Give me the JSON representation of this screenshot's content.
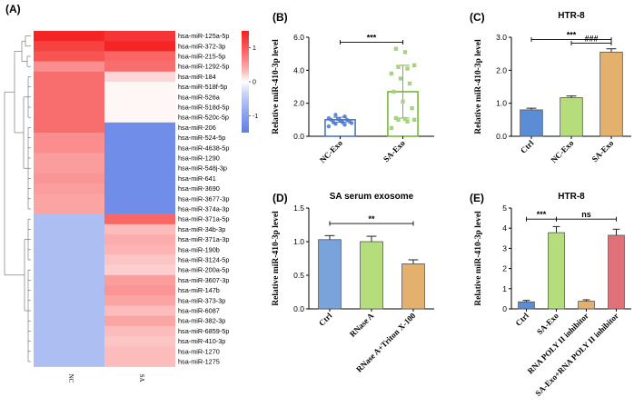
{
  "chart_data": [
    {
      "panel": "(A)",
      "type": "heatmap",
      "columns": [
        "NC",
        "SA"
      ],
      "rows": [
        "hsa-miR-125a-5p",
        "hsa-miR-372-3p",
        "hsa-miR-215-5p",
        "hsa-miR-1292-5p",
        "hsa-miR-184",
        "hsa-miR-518f-5p",
        "hsa-miR-526a",
        "hsa-miR-518d-5p",
        "hsa-miR-520c-5p",
        "hsa-miR-206",
        "hsa-miR-524-5p",
        "hsa-miR-4638-5p",
        "hsa-miR-1290",
        "hsa-miR-548j-3p",
        "hsa-miR-641",
        "hsa-miR-3690",
        "hsa-miR-3677-3p",
        "hsa-miR-374a-3p",
        "hsa-miR-371a-5p",
        "hsa-miR-34b-3p",
        "hsa-miR-371a-3p",
        "hsa-miR-190b",
        "hsa-miR-3124-5p",
        "hsa-miR-200a-5p",
        "hsa-miR-3607-3p",
        "hsa-miR-147b",
        "hsa-miR-373-3p",
        "hsa-miR-6087",
        "hsa-miR-382-3p",
        "hsa-miR-6859-5p",
        "hsa-miR-410-3p",
        "hsa-miR-1270",
        "hsa-miR-1275"
      ],
      "values": [
        [
          1.45,
          1.3
        ],
        [
          1.2,
          1.45
        ],
        [
          1.05,
          0.9
        ],
        [
          0.6,
          0.85
        ],
        [
          0.85,
          0.15
        ],
        [
          0.85,
          0.02
        ],
        [
          0.85,
          0.02
        ],
        [
          0.85,
          0.02
        ],
        [
          0.85,
          0.02
        ],
        [
          0.85,
          -1.25
        ],
        [
          0.6,
          -1.25
        ],
        [
          0.6,
          -1.25
        ],
        [
          0.5,
          -1.25
        ],
        [
          0.5,
          -1.25
        ],
        [
          0.55,
          -1.25
        ],
        [
          0.5,
          -1.25
        ],
        [
          0.45,
          -1.25
        ],
        [
          0.45,
          -1.25
        ],
        [
          -0.6,
          0.9
        ],
        [
          -0.6,
          0.3
        ],
        [
          -0.6,
          0.4
        ],
        [
          -0.6,
          0.35
        ],
        [
          -0.6,
          0.25
        ],
        [
          -0.6,
          0.2
        ],
        [
          -0.6,
          0.5
        ],
        [
          -0.6,
          0.55
        ],
        [
          -0.6,
          0.45
        ],
        [
          -0.6,
          0.3
        ],
        [
          -0.6,
          0.45
        ],
        [
          -0.6,
          0.3
        ],
        [
          -0.6,
          0.25
        ],
        [
          -0.6,
          0.3
        ],
        [
          -0.6,
          0.3
        ]
      ],
      "colorbar": {
        "ticks": [
          1,
          0,
          -1
        ],
        "range": [
          -1.5,
          1.5
        ],
        "colors": [
          "#5b7ee6",
          "#ffffff",
          "#f51f1f"
        ]
      }
    },
    {
      "panel": "(B)",
      "type": "bar",
      "ylabel": "Relative miR-410-3p level",
      "ylim": [
        0,
        6
      ],
      "yticks": [
        "0.0",
        "2.0",
        "4.0",
        "6.0"
      ],
      "categories": [
        "NC-Exo",
        "SA-Exo"
      ],
      "values": [
        1.0,
        2.7
      ],
      "errors": [
        0.15,
        1.6
      ],
      "colors": [
        "#4a77c4",
        "#76b83a"
      ],
      "points": [
        [
          0.6,
          0.7,
          0.75,
          0.8,
          0.85,
          0.85,
          0.9,
          0.95,
          1.0,
          1.0,
          1.05,
          1.1,
          1.2,
          1.3
        ],
        [
          0.5,
          0.9,
          1.0,
          1.0,
          1.05,
          1.1,
          1.7,
          2.1,
          2.7,
          3.2,
          3.5,
          3.8,
          4.1,
          4.2,
          4.3,
          5.1,
          5.3
        ]
      ],
      "significance": [
        {
          "from": 0,
          "to": 1,
          "y": 5.7,
          "label": "***"
        }
      ]
    },
    {
      "panel": "(C)",
      "type": "bar",
      "title": "HTR-8",
      "ylabel": "Relative miR-410-3p level",
      "ylim": [
        0,
        3
      ],
      "yticks": [
        "0.0",
        "1.0",
        "2.0",
        "3.0"
      ],
      "categories": [
        "Ctrl",
        "NC-Exo",
        "SA-Exo"
      ],
      "values": [
        0.8,
        1.17,
        2.55
      ],
      "errors": [
        0.05,
        0.05,
        0.1
      ],
      "colors": [
        "#5b8dd6",
        "#b5dd7c",
        "#e4b06d"
      ],
      "significance": [
        {
          "from": 0,
          "to": 2,
          "y": 2.93,
          "label": "***"
        },
        {
          "from": 1,
          "to": 2,
          "y": 2.82,
          "label": "###"
        }
      ]
    },
    {
      "panel": "(D)",
      "type": "bar",
      "title": "SA serum exosome",
      "ylabel": "Relative miR-410-3p level",
      "ylim": [
        0,
        1.5
      ],
      "yticks": [
        "0.0",
        "0.5",
        "1.0",
        "1.5"
      ],
      "categories": [
        "Ctrl",
        "RNase A",
        "RNase A+Triton X-100"
      ],
      "values": [
        1.03,
        1.0,
        0.67
      ],
      "errors": [
        0.06,
        0.08,
        0.06
      ],
      "colors": [
        "#7aa3dc",
        "#b5dd7c",
        "#e4b06d"
      ],
      "significance": [
        {
          "from": 0,
          "to": 2,
          "y": 1.27,
          "label": "**"
        }
      ]
    },
    {
      "panel": "(E)",
      "type": "bar",
      "title": "HTR-8",
      "ylabel": "Relative miR-410-3p level",
      "ylim": [
        0,
        5
      ],
      "yticks": [
        "0",
        "1",
        "2",
        "3",
        "4",
        "5"
      ],
      "categories": [
        "Ctrl",
        "SA-Exo",
        "RNA POLY II inhibitor",
        "SA-Exo+RNA POLY II inhibitor"
      ],
      "values": [
        0.35,
        3.78,
        0.38,
        3.65
      ],
      "errors": [
        0.07,
        0.3,
        0.07,
        0.3
      ],
      "colors": [
        "#5b8dd6",
        "#b5dd7c",
        "#e4b06d",
        "#e0707a"
      ],
      "significance": [
        {
          "from": 0,
          "to": 1,
          "y": 4.45,
          "label": "***"
        },
        {
          "from": 1,
          "to": 3,
          "y": 4.45,
          "label": "ns"
        }
      ]
    }
  ]
}
